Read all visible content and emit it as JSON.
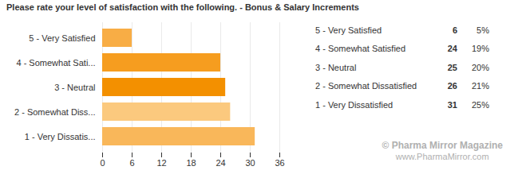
{
  "chart_data": {
    "type": "bar",
    "orientation": "horizontal",
    "title": "Please rate your level of satisfaction with the following. - Bonus & Salary Increments",
    "categories": [
      "5 - Very Satisfied",
      "4 - Somewhat Sati...",
      "3 - Neutral",
      "2 - Somewhat Diss...",
      "1 - Very Dissatis..."
    ],
    "values": [
      6,
      24,
      25,
      26,
      31
    ],
    "colors": [
      "#f8ad45",
      "#f69d1f",
      "#f39000",
      "#fbc97e",
      "#f9b75a"
    ],
    "xlim": [
      0,
      36
    ],
    "xticks": [
      0,
      6,
      12,
      18,
      24,
      30,
      36
    ],
    "grid": true,
    "table": [
      {
        "label": "5 - Very Satisfied",
        "count": 6,
        "percent": "5%"
      },
      {
        "label": "4 - Somewhat Satisfied",
        "count": 24,
        "percent": "19%"
      },
      {
        "label": "3 - Neutral",
        "count": 25,
        "percent": "20%"
      },
      {
        "label": "2 - Somewhat Dissatisfied",
        "count": 26,
        "percent": "21%"
      },
      {
        "label": "1 - Very Dissatisfied",
        "count": 31,
        "percent": "25%"
      }
    ],
    "annotations": [
      "© Pharma Mirror Magazine",
      "www.PharmaMirror.com"
    ]
  }
}
